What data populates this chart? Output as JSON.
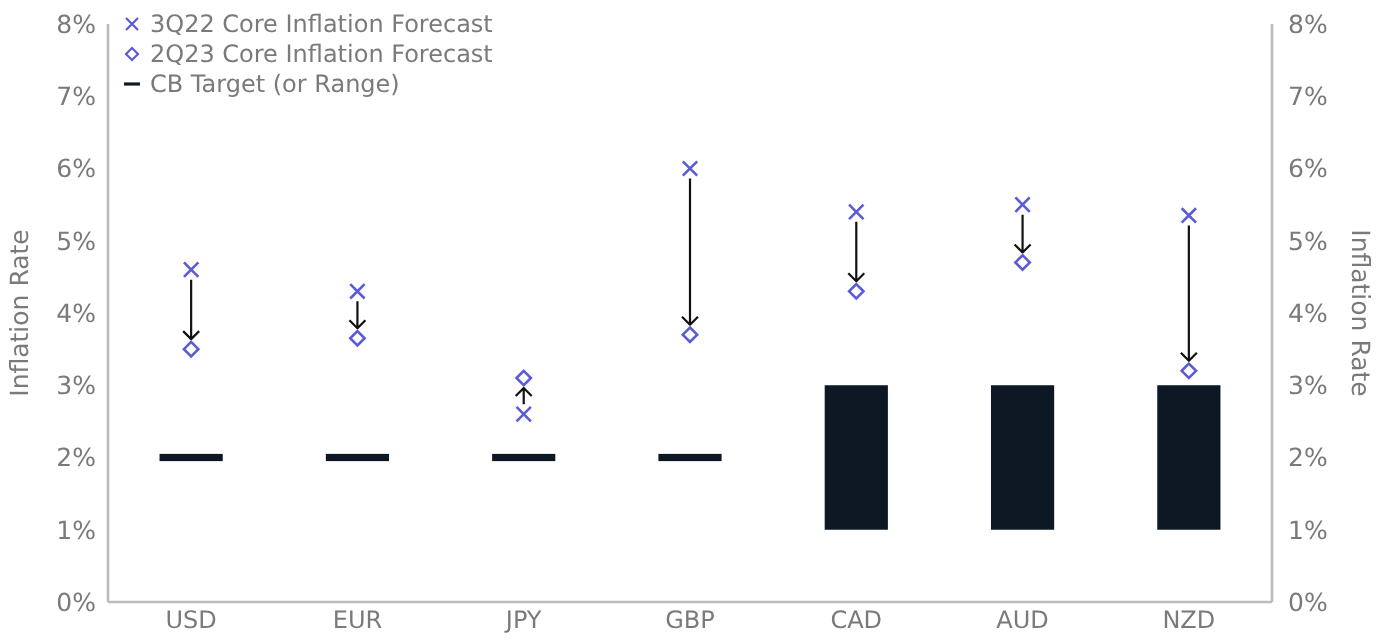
{
  "chart_data": {
    "type": "bar",
    "ylabel": "Inflation Rate",
    "y2label": "Inflation Rate",
    "categories": [
      "USD",
      "EUR",
      "JPY",
      "GBP",
      "CAD",
      "AUD",
      "NZD"
    ],
    "ylim": [
      0,
      8
    ],
    "yticks": [
      {
        "value": 0,
        "label": "0%"
      },
      {
        "value": 1,
        "label": "1%"
      },
      {
        "value": 2,
        "label": "2%"
      },
      {
        "value": 3,
        "label": "3%"
      },
      {
        "value": 4,
        "label": "4%"
      },
      {
        "value": 5,
        "label": "5%"
      },
      {
        "value": 6,
        "label": "6%"
      },
      {
        "value": 7,
        "label": "7%"
      },
      {
        "value": 8,
        "label": "8%"
      }
    ],
    "y2lim": [
      0,
      8
    ],
    "y2ticks": [
      {
        "value": 0,
        "label": "0%"
      },
      {
        "value": 1,
        "label": "1%"
      },
      {
        "value": 2,
        "label": "2%"
      },
      {
        "value": 3,
        "label": "3%"
      },
      {
        "value": 4,
        "label": "4%"
      },
      {
        "value": 5,
        "label": "5%"
      },
      {
        "value": 6,
        "label": "6%"
      },
      {
        "value": 7,
        "label": "7%"
      },
      {
        "value": 8,
        "label": "8%"
      }
    ],
    "grid": false,
    "legend": "top left",
    "series": [
      {
        "name": "3Q22 Core Inflation Forecast",
        "type": "scatter",
        "marker": "cross",
        "color": "#5b5bd6",
        "values": [
          4.6,
          4.3,
          2.6,
          6.0,
          5.4,
          5.5,
          5.35
        ]
      },
      {
        "name": "2Q23 Core Inflation Forecast",
        "type": "scatter",
        "marker": "diamond",
        "color": "#5b5bd6",
        "values": [
          3.5,
          3.65,
          3.1,
          3.7,
          4.3,
          4.7,
          3.2
        ]
      },
      {
        "name": "CB Target (or Range)",
        "color": "#0d1824",
        "base": [
          1.95,
          1.95,
          1.95,
          1.95,
          1,
          1,
          1
        ],
        "values": [
          0.1,
          0.1,
          0.1,
          0.1,
          2,
          2,
          2
        ]
      }
    ]
  }
}
